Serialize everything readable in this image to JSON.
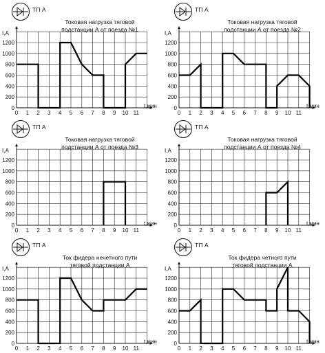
{
  "station_label": "ТП А",
  "y_unit_label": "I,A",
  "x_unit_label": "t,мин",
  "chart_data": [
    {
      "type": "line",
      "title": "Токовая нагрузка тяговой подстанции А от поезда №1",
      "title_lines": [
        "Токовая нагрузка тяговой",
        "подстанции А от поезда №1"
      ],
      "xlabel": "t,мин",
      "ylabel": "I,A",
      "xlim": [
        0,
        12
      ],
      "ylim": [
        0,
        1400
      ],
      "x_ticks": [
        0,
        1,
        2,
        3,
        4,
        5,
        6,
        7,
        8,
        9,
        10,
        11
      ],
      "y_ticks": [
        0,
        200,
        400,
        600,
        800,
        1000,
        1200
      ],
      "grid": true,
      "series": [
        {
          "values": [
            [
              0,
              800
            ],
            [
              2,
              800
            ],
            [
              2,
              0
            ],
            [
              4,
              0
            ],
            [
              4,
              1200
            ],
            [
              5,
              1200
            ],
            [
              6,
              800
            ],
            [
              7,
              600
            ],
            [
              8,
              600
            ],
            [
              8,
              0
            ],
            [
              10,
              0
            ],
            [
              10,
              800
            ],
            [
              11,
              1000
            ],
            [
              12,
              1000
            ]
          ]
        }
      ]
    },
    {
      "type": "line",
      "title": "Токовая нагрузка тяговой подстанции А от поезда №2",
      "title_lines": [
        "Токовая нагрузка тяговой",
        "подстанции А от поезда №2"
      ],
      "xlabel": "t,мин",
      "ylabel": "I,A",
      "xlim": [
        0,
        12
      ],
      "ylim": [
        0,
        1400
      ],
      "x_ticks": [
        0,
        1,
        2,
        3,
        4,
        5,
        6,
        7,
        8,
        9,
        10,
        11
      ],
      "y_ticks": [
        0,
        200,
        400,
        600,
        800,
        1000,
        1200
      ],
      "grid": true,
      "series": [
        {
          "values": [
            [
              0,
              600
            ],
            [
              1,
              600
            ],
            [
              2,
              800
            ],
            [
              2,
              0
            ],
            [
              4,
              0
            ],
            [
              4,
              1000
            ],
            [
              5,
              1000
            ],
            [
              6,
              800
            ],
            [
              8,
              800
            ],
            [
              8,
              0
            ],
            [
              9,
              0
            ],
            [
              9,
              400
            ],
            [
              10,
              600
            ],
            [
              11,
              600
            ],
            [
              12,
              400
            ],
            [
              12,
              0
            ]
          ]
        }
      ]
    },
    {
      "type": "line",
      "title": "Токовая нагрузка тяговой подстанции А от поезда №3",
      "title_lines": [
        "Токовая нагрузка тяговой",
        "подстанции А от поезда №3"
      ],
      "xlabel": "t,мин",
      "ylabel": "I,A",
      "xlim": [
        0,
        12
      ],
      "ylim": [
        0,
        1400
      ],
      "x_ticks": [
        0,
        1,
        2,
        3,
        4,
        5,
        6,
        7,
        8,
        9,
        10,
        11
      ],
      "y_ticks": [
        0,
        200,
        400,
        600,
        800,
        1000,
        1200
      ],
      "grid": true,
      "series": [
        {
          "values": [
            [
              8,
              0
            ],
            [
              8,
              800
            ],
            [
              10,
              800
            ],
            [
              10,
              0
            ]
          ]
        }
      ]
    },
    {
      "type": "line",
      "title": "Токовая нагрузка тяговой подстанции А от поезда №4",
      "title_lines": [
        "Токовая нагрузка тяговой",
        "подстанции А от поезда №4"
      ],
      "xlabel": "t,мин",
      "ylabel": "I,A",
      "xlim": [
        0,
        12
      ],
      "ylim": [
        0,
        1400
      ],
      "x_ticks": [
        0,
        1,
        2,
        3,
        4,
        5,
        6,
        7,
        8,
        9,
        10,
        11
      ],
      "y_ticks": [
        0,
        200,
        400,
        600,
        800,
        1000,
        1200
      ],
      "grid": true,
      "series": [
        {
          "values": [
            [
              8,
              0
            ],
            [
              8,
              600
            ],
            [
              9,
              600
            ],
            [
              10,
              800
            ],
            [
              10,
              0
            ]
          ]
        }
      ]
    },
    {
      "type": "line",
      "title": "Ток фидера нечетного пути тяговой подстанции А",
      "title_lines": [
        "Ток фидера нечетного пути",
        "тяговой подстанции А"
      ],
      "xlabel": "t,мин",
      "ylabel": "I,A",
      "xlim": [
        0,
        12
      ],
      "ylim": [
        0,
        1400
      ],
      "x_ticks": [
        0,
        1,
        2,
        3,
        4,
        5,
        6,
        7,
        8,
        9,
        10,
        11
      ],
      "y_ticks": [
        0,
        200,
        400,
        600,
        800,
        1000,
        1200
      ],
      "grid": true,
      "series": [
        {
          "values": [
            [
              0,
              800
            ],
            [
              2,
              800
            ],
            [
              2,
              0
            ],
            [
              4,
              0
            ],
            [
              4,
              1200
            ],
            [
              5,
              1200
            ],
            [
              6,
              800
            ],
            [
              7,
              600
            ],
            [
              8,
              600
            ],
            [
              8,
              800
            ],
            [
              10,
              800
            ],
            [
              11,
              1000
            ],
            [
              12,
              1000
            ]
          ]
        }
      ]
    },
    {
      "type": "line",
      "title": "Ток фидера четного пути тяговой подстанции А",
      "title_lines": [
        "Ток фидера четного пути",
        "тяговой подстанции А"
      ],
      "xlabel": "t,мин",
      "ylabel": "I,A",
      "xlim": [
        0,
        12
      ],
      "ylim": [
        0,
        1400
      ],
      "x_ticks": [
        0,
        1,
        2,
        3,
        4,
        5,
        6,
        7,
        8,
        9,
        10,
        11
      ],
      "y_ticks": [
        0,
        200,
        400,
        600,
        800,
        1000,
        1200
      ],
      "grid": true,
      "series": [
        {
          "values": [
            [
              0,
              600
            ],
            [
              1,
              600
            ],
            [
              2,
              800
            ],
            [
              2,
              0
            ],
            [
              4,
              0
            ],
            [
              4,
              1000
            ],
            [
              5,
              1000
            ],
            [
              6,
              800
            ],
            [
              8,
              800
            ],
            [
              8,
              600
            ],
            [
              9,
              600
            ],
            [
              9,
              1000
            ],
            [
              10,
              1400
            ],
            [
              10,
              600
            ],
            [
              11,
              600
            ],
            [
              12,
              400
            ],
            [
              12,
              0
            ]
          ]
        }
      ]
    }
  ]
}
